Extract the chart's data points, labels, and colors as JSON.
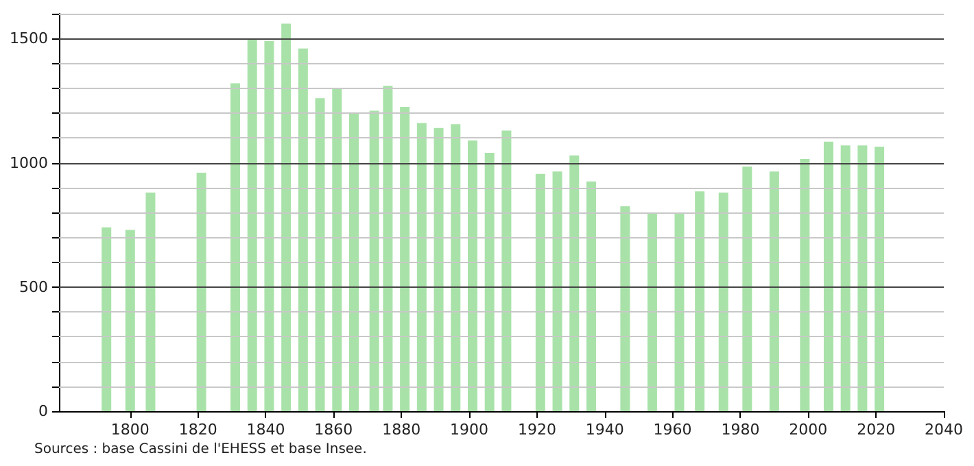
{
  "chart_data": {
    "type": "bar",
    "x": [
      1793,
      1800,
      1806,
      1821,
      1831,
      1836,
      1841,
      1846,
      1851,
      1856,
      1861,
      1866,
      1872,
      1876,
      1881,
      1886,
      1891,
      1896,
      1901,
      1906,
      1911,
      1921,
      1926,
      1931,
      1936,
      1946,
      1954,
      1962,
      1968,
      1975,
      1982,
      1990,
      1999,
      2006,
      2011,
      2016,
      2021
    ],
    "values": [
      740,
      730,
      880,
      960,
      1320,
      1500,
      1490,
      1560,
      1460,
      1260,
      1300,
      1200,
      1210,
      1310,
      1225,
      1160,
      1140,
      1155,
      1090,
      1040,
      1130,
      955,
      965,
      1030,
      925,
      825,
      795,
      800,
      885,
      880,
      985,
      965,
      1015,
      1085,
      1070,
      1070,
      1065
    ],
    "color": "#a9e2a9",
    "xlim": [
      1779,
      2040
    ],
    "xticks": [
      1800,
      1820,
      1840,
      1860,
      1880,
      1900,
      1920,
      1940,
      1960,
      1980,
      2000,
      2020,
      2040
    ],
    "ylim": [
      0,
      1600
    ],
    "yticks": [
      0,
      {
        "value": 100,
        "label": null
      },
      {
        "value": 200,
        "label": null
      },
      {
        "value": 300,
        "label": null
      },
      {
        "value": 400,
        "label": null
      },
      500,
      {
        "value": 600,
        "label": null
      },
      {
        "value": 700,
        "label": null
      },
      {
        "value": 800,
        "label": null
      },
      {
        "value": 900,
        "label": null
      },
      1000,
      {
        "value": 1100,
        "label": null
      },
      {
        "value": 1200,
        "label": null
      },
      {
        "value": 1300,
        "label": null
      },
      {
        "value": 1400,
        "label": null
      },
      1500,
      {
        "value": 1600,
        "label": null
      }
    ],
    "grid": "y",
    "annotations": [
      "Sources : base Cassini de l'EHESS et base Insee."
    ]
  }
}
